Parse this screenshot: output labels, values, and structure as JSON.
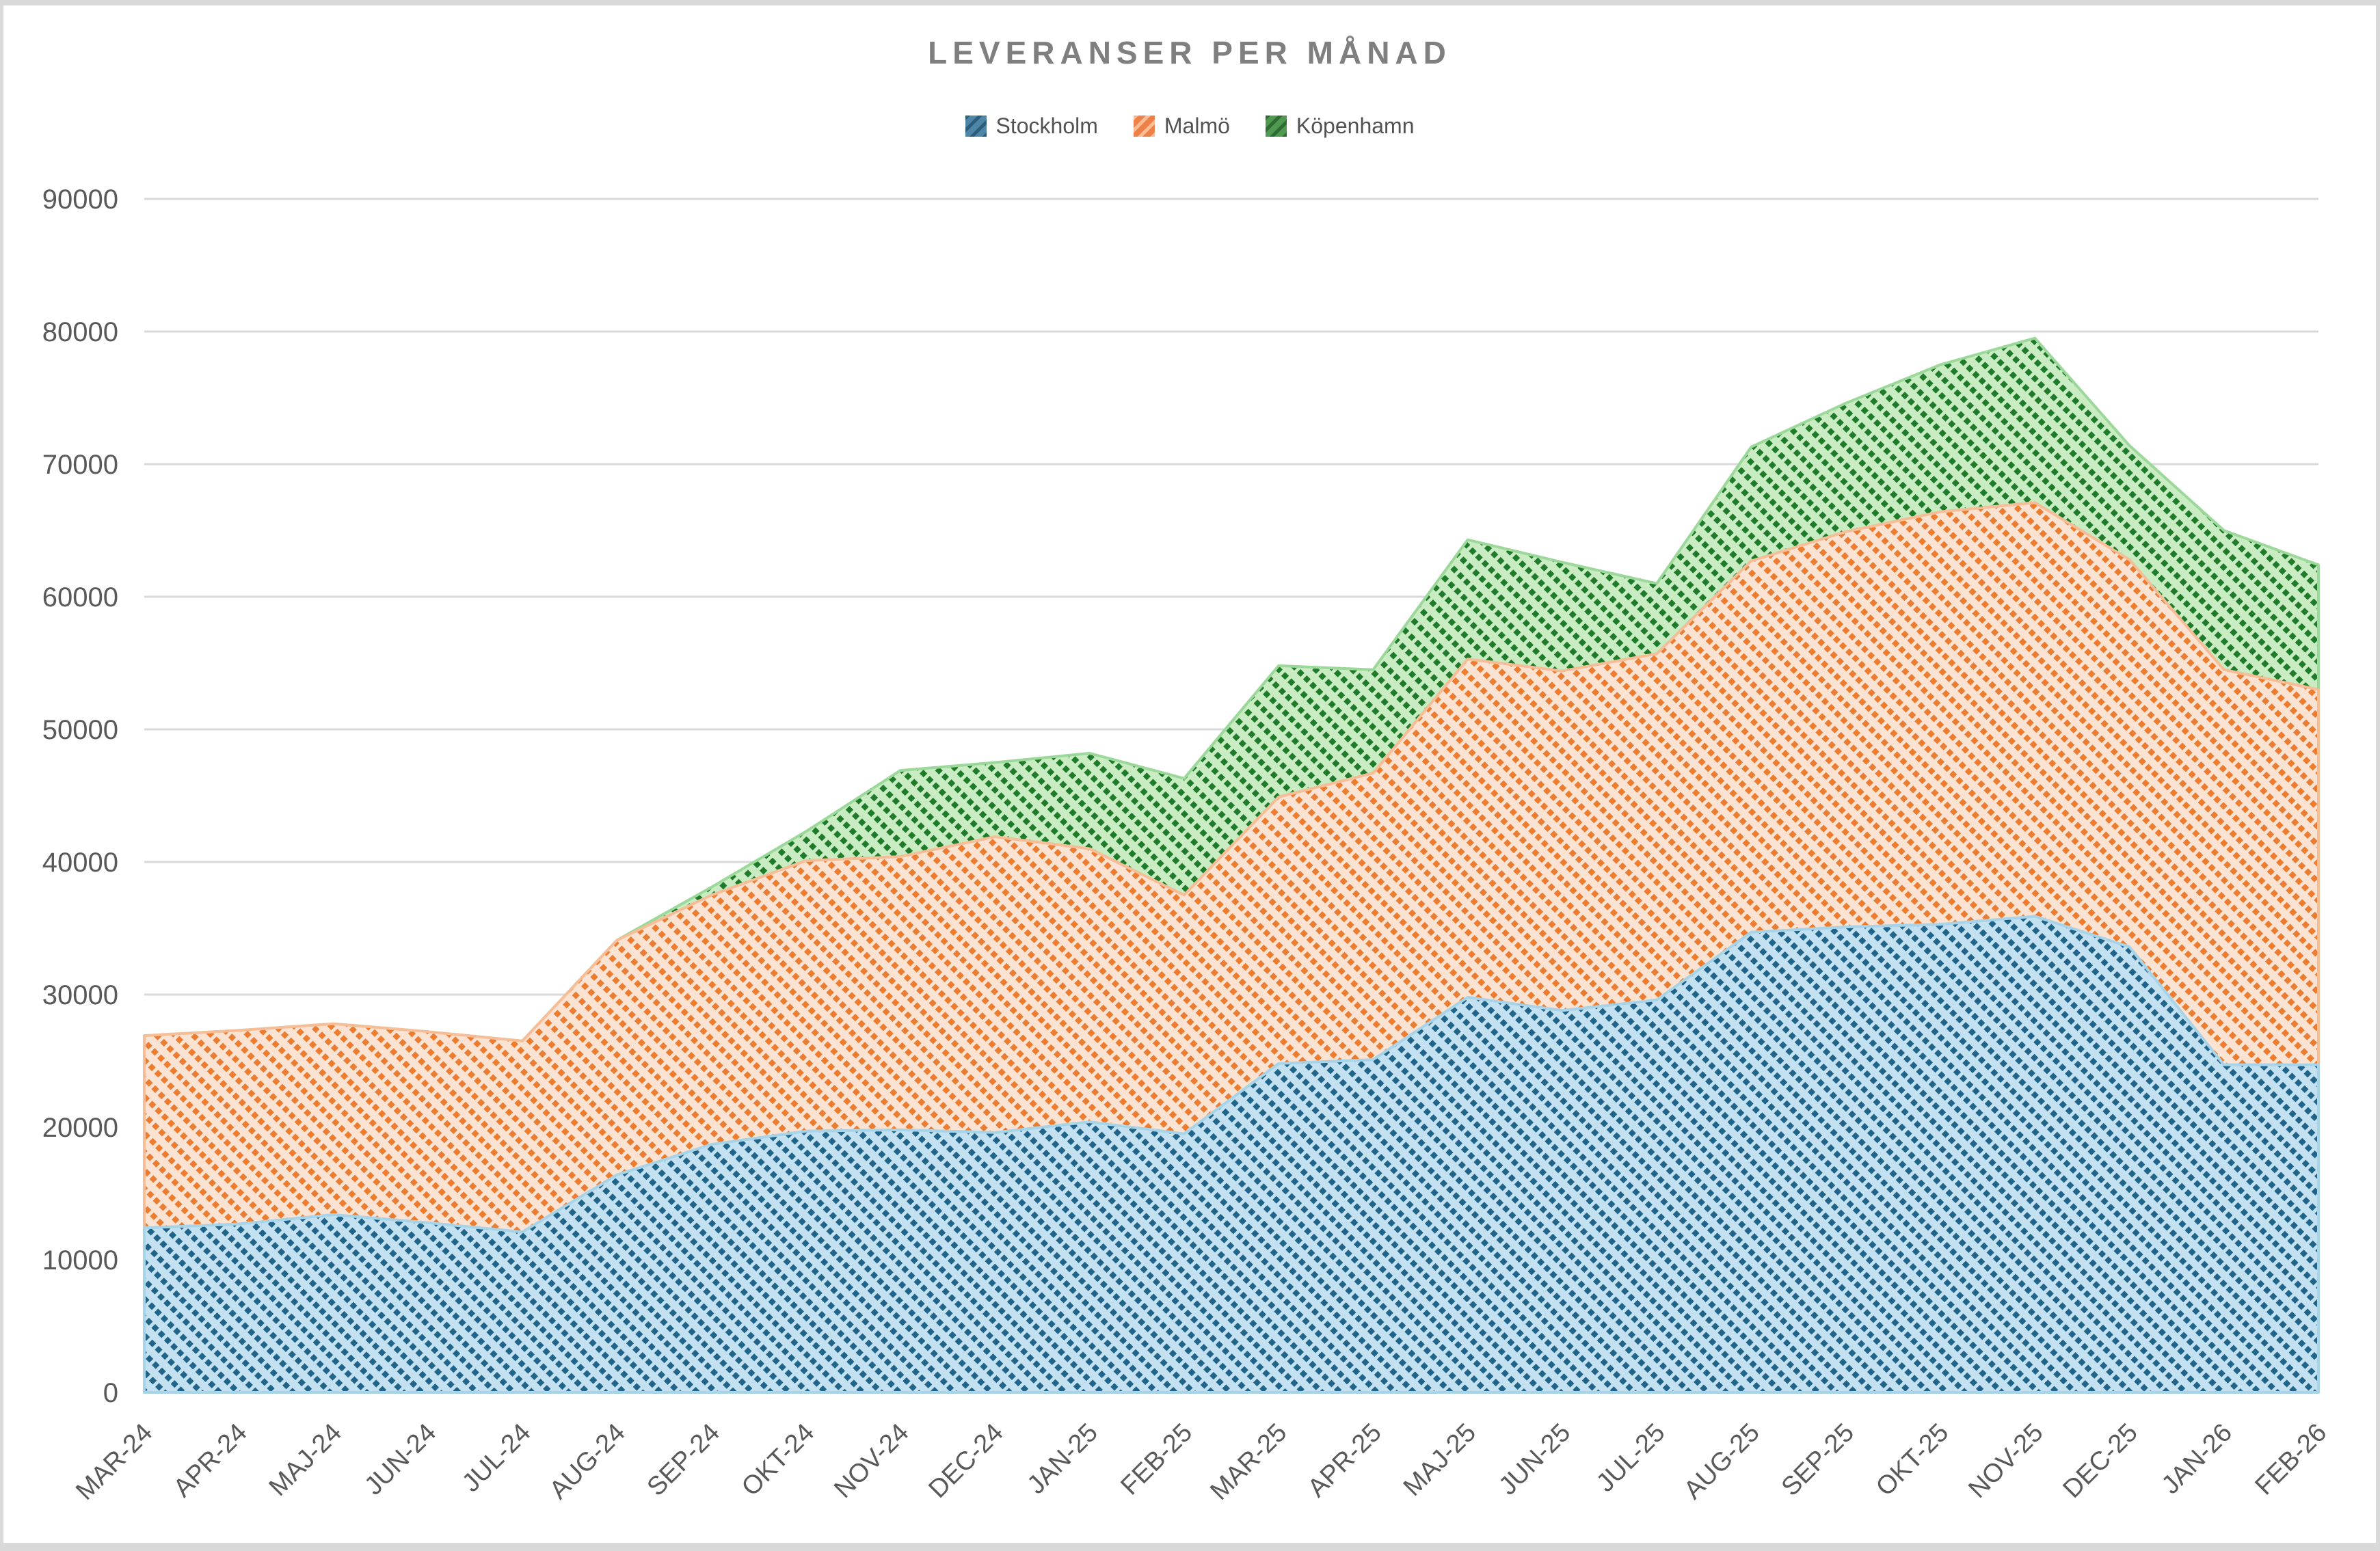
{
  "chart_data": {
    "type": "area",
    "stacked": true,
    "title": "LEVERANSER PER MÅNAD",
    "xlabel": "",
    "ylabel": "",
    "ylim": [
      0,
      90000
    ],
    "ytick_step": 10000,
    "yticks": [
      0,
      10000,
      20000,
      30000,
      40000,
      50000,
      60000,
      70000,
      80000,
      90000
    ],
    "grid": true,
    "legend_position": "top",
    "gridline_color": "#D9D9D9",
    "axis_label_color": "#595959",
    "title_color": "#7F7F7F",
    "legend_text_color": "#525252",
    "frame_color": "#D9D9D9",
    "categories": [
      "MAR-24",
      "APR-24",
      "MAJ-24",
      "JUN-24",
      "JUL-24",
      "AUG-24",
      "SEP-24",
      "OKT-24",
      "NOV-24",
      "DEC-24",
      "JAN-25",
      "FEB-25",
      "MAR-25",
      "APR-25",
      "MAJ-25",
      "JUN-25",
      "JUL-25",
      "AUG-25",
      "SEP-25",
      "OKT-25",
      "NOV-25",
      "DEC-25",
      "JAN-26",
      "FEB-26"
    ],
    "series": [
      {
        "name": "Stockholm",
        "values": [
          12400,
          12700,
          13400,
          12800,
          12100,
          16400,
          18700,
          19700,
          19800,
          19600,
          20400,
          19500,
          24800,
          25100,
          29800,
          28800,
          29600,
          34700,
          35100,
          35300,
          35900,
          33600,
          24700,
          24700
        ],
        "area_fill": "#C3E1F0",
        "hatch": "#20648A",
        "edge": "#A7D4E8",
        "legend_fill": "#4E86A8",
        "legend_hatch": "#2C5E7C"
      },
      {
        "name": "Malmö",
        "values": [
          14500,
          14600,
          14400,
          14400,
          14400,
          17700,
          18800,
          20400,
          20600,
          22300,
          20600,
          18000,
          20100,
          21600,
          25500,
          25600,
          26100,
          28000,
          29800,
          31100,
          31200,
          29200,
          29800,
          28300
        ],
        "area_fill": "#FBE3D3",
        "hatch": "#EC7C30",
        "edge": "#F7BD97",
        "legend_fill": "#ED8148",
        "legend_hatch": "#F7BE97"
      },
      {
        "name": "Köpenhamn",
        "values": [
          0,
          0,
          0,
          0,
          0,
          0,
          600,
          2200,
          6500,
          5600,
          7200,
          8800,
          9900,
          7800,
          9000,
          8200,
          5300,
          8600,
          9700,
          11100,
          12400,
          8600,
          10500,
          9400
        ],
        "area_fill": "#C9ECC3",
        "hatch": "#1E7B2A",
        "edge": "#9BD89A",
        "legend_fill": "#4F9951",
        "legend_hatch": "#2D6C33"
      }
    ]
  }
}
